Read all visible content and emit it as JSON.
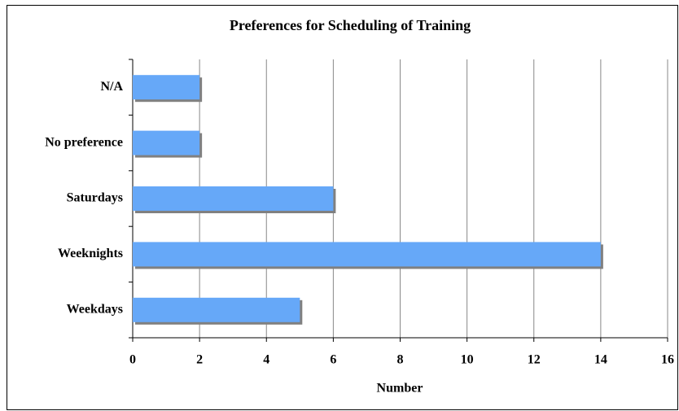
{
  "chart_data": {
    "type": "barh",
    "title": "Preferences for Scheduling of Training",
    "categories": [
      "N/A",
      "No preference",
      "Saturdays",
      "Weeknights",
      "Weekdays"
    ],
    "values": [
      2,
      2,
      6,
      14,
      5
    ],
    "color": "#66a8f8",
    "xlabel": "Number",
    "xlim": [
      0,
      16
    ],
    "xticks": [
      0,
      2,
      4,
      6,
      8,
      10,
      12,
      14,
      16
    ],
    "grid": true
  }
}
